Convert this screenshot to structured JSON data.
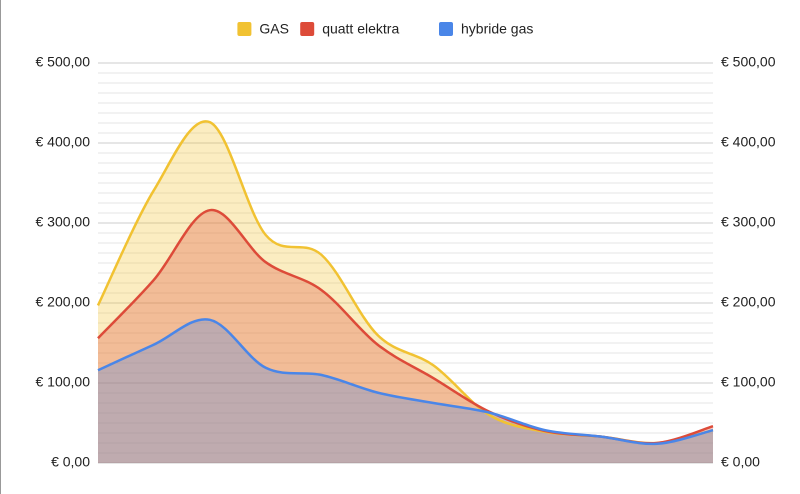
{
  "chart_data": {
    "type": "area",
    "categories": [
      null,
      null,
      null,
      null,
      null,
      null,
      null,
      null,
      null,
      null,
      null,
      null
    ],
    "series": [
      {
        "name": "GAS",
        "color": "#f1c232",
        "values": [
          197,
          341,
          426,
          285,
          260,
          160,
          122,
          60,
          39,
          33,
          25,
          41
        ]
      },
      {
        "name": "quatt elektra",
        "color": "#dd4b39",
        "values": [
          156,
          229,
          316,
          251,
          216,
          148,
          106,
          64,
          40,
          33,
          25,
          46
        ]
      },
      {
        "name": "hybride gas",
        "color": "#4a86e8",
        "values": [
          116,
          148,
          179,
          119,
          110,
          88,
          75,
          63,
          41,
          33,
          24,
          41
        ]
      }
    ],
    "ylim": [
      0,
      500
    ],
    "yticks": [
      {
        "value": 0,
        "label": "€ 0,00"
      },
      {
        "value": 100,
        "label": "€ 100,00"
      },
      {
        "value": 200,
        "label": "€ 200,00"
      },
      {
        "value": 300,
        "label": "€ 300,00"
      },
      {
        "value": 400,
        "label": "€ 400,00"
      },
      {
        "value": 500,
        "label": "€ 500,00"
      }
    ],
    "y2lim": [
      0,
      500
    ],
    "y2ticks": [
      {
        "value": 0,
        "label": "€ 0,00"
      },
      {
        "value": 100,
        "label": "€ 100,00"
      },
      {
        "value": 200,
        "label": "€ 200,00"
      },
      {
        "value": 300,
        "label": "€ 300,00"
      },
      {
        "value": 400,
        "label": "€ 400,00"
      },
      {
        "value": 500,
        "label": "€ 500,00"
      }
    ],
    "grid": true,
    "minor_grid": true,
    "smooth": true,
    "legend": "top"
  }
}
